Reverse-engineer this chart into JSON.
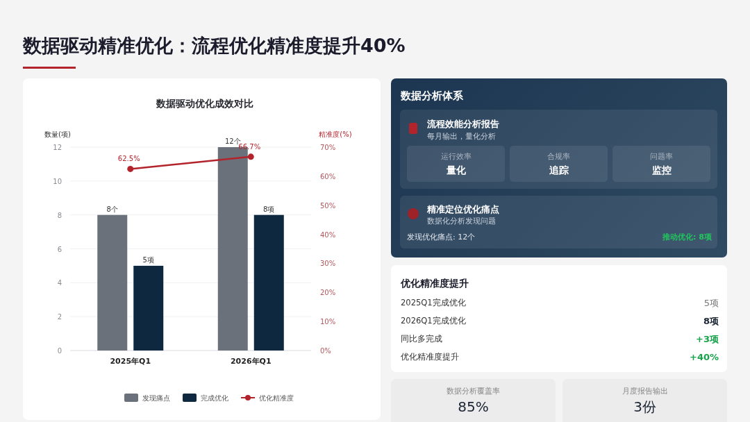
{
  "chart_data": [
    {
      "type": "other",
      "title": "数据驱动精准优化：流程优化精准度提升40%"
    },
    {
      "type": "bar",
      "title": "数据驱动优化成效对比",
      "ylabel": "数量(项)",
      "y2label": "精准度(%)",
      "categories": [
        "2025年Q1",
        "2026年Q1"
      ],
      "series": [
        {
          "name": "发现痛点",
          "color": "#6b717a",
          "values": [
            8,
            12
          ],
          "value_labels": [
            "8个",
            "12个"
          ]
        },
        {
          "name": "完成优化",
          "color": "#0e2840",
          "values": [
            5,
            8
          ],
          "value_labels": [
            "5项",
            "8项"
          ]
        },
        {
          "name": "优化精准度",
          "type": "line",
          "axis": "y2",
          "color": "#b3232b",
          "marker": "circle",
          "line_style": "solid",
          "values": [
            62.5,
            66.7
          ],
          "value_labels": [
            "62.5%",
            "66.7%"
          ]
        }
      ],
      "ylim": [
        0,
        12
      ],
      "yticks": [
        0,
        2,
        4,
        6,
        8,
        10,
        12
      ],
      "y2lim": [
        0,
        70
      ],
      "y2ticks": [
        {
          "value": 0,
          "label": "0%"
        },
        {
          "value": 10,
          "label": "10%"
        },
        {
          "value": 20,
          "label": "20%"
        },
        {
          "value": 30,
          "label": "30%"
        },
        {
          "value": 40,
          "label": "40%"
        },
        {
          "value": 50,
          "label": "50%"
        },
        {
          "value": 60,
          "label": "60%"
        },
        {
          "value": 70,
          "label": "70%"
        }
      ],
      "grid": "y",
      "legend": "bottom"
    },
    {
      "type": "other",
      "title": "数据分析体系",
      "annotations": [
        "流程效能分析报告",
        "每月输出，量化分析",
        "运行效率",
        "量化",
        "合规率",
        "追踪",
        "问题率",
        "监控",
        "精准定位优化痛点",
        "数据化分析发现问题",
        "发现优化痛点: 12个",
        "推动优化: 8项"
      ]
    },
    {
      "type": "other",
      "title": "优化精准度提升",
      "annotations": [
        "2025Q1完成优化",
        "5项",
        "2026Q1完成优化",
        "8项",
        "同比多完成",
        "+3项",
        "优化精准度提升",
        "+40%"
      ]
    },
    {
      "type": "other",
      "title": "数据分析覆盖率",
      "annotations": [
        "85%"
      ]
    },
    {
      "type": "other",
      "title": "月度报告输出",
      "annotations": [
        "3份"
      ]
    }
  ]
}
